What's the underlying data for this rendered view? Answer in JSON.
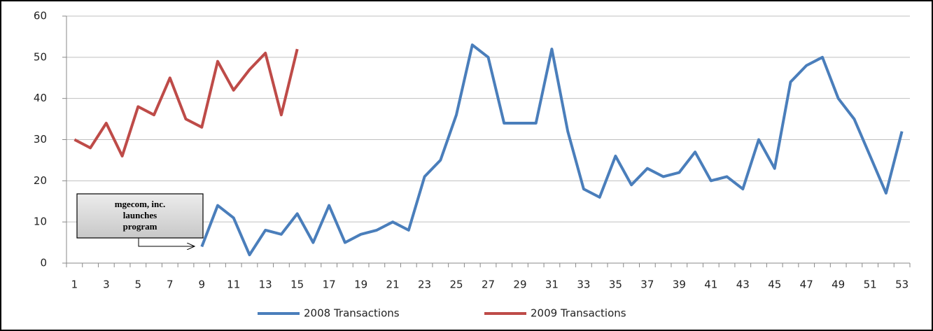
{
  "chart_data": {
    "type": "line",
    "categories": [
      1,
      null,
      3,
      null,
      5,
      null,
      7,
      null,
      9,
      null,
      11,
      null,
      13,
      null,
      15,
      null,
      17,
      null,
      19,
      null,
      21,
      null,
      23,
      null,
      25,
      null,
      27,
      null,
      29,
      null,
      31,
      null,
      33,
      null,
      35,
      null,
      37,
      null,
      39,
      null,
      41,
      null,
      43,
      null,
      45,
      null,
      47,
      null,
      49,
      null,
      51,
      null,
      53
    ],
    "series": [
      {
        "name": "2008 Transactions",
        "color": "#4a7ebb",
        "values": [
          null,
          null,
          null,
          null,
          null,
          null,
          null,
          null,
          4,
          14,
          11,
          2,
          8,
          7,
          12,
          5,
          14,
          5,
          7,
          8,
          10,
          8,
          21,
          25,
          36,
          53,
          50,
          34,
          34,
          34,
          52,
          32,
          18,
          16,
          26,
          19,
          23,
          21,
          22,
          27,
          20,
          21,
          18,
          30,
          23,
          44,
          48,
          50,
          40,
          35,
          26,
          17,
          32
        ]
      },
      {
        "name": "2009 Transactions",
        "color": "#be4b48",
        "values": [
          30,
          28,
          34,
          26,
          38,
          36,
          45,
          35,
          33,
          49,
          42,
          47,
          51,
          36,
          52,
          null,
          null,
          null,
          null,
          null,
          null,
          null,
          null,
          null,
          null,
          null,
          null,
          null,
          null,
          null,
          null,
          null,
          null,
          null,
          null,
          null,
          null,
          null,
          null,
          null,
          null,
          null,
          null,
          null,
          null,
          null,
          null,
          null,
          null,
          null,
          null,
          null,
          null
        ]
      }
    ],
    "ylim": [
      0,
      60
    ],
    "yticks": [
      0,
      10,
      20,
      30,
      40,
      50,
      60
    ],
    "grid": true,
    "legend": "bottom",
    "annotation": [
      "mgecom, inc.",
      "launches",
      "program"
    ]
  }
}
